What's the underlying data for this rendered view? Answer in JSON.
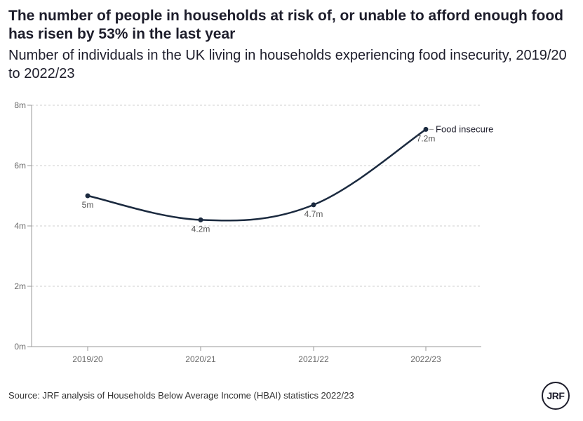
{
  "header": {
    "title": "The number of people in households at risk of, or unable to afford enough food has risen by 53% in the last year",
    "subtitle": "Number of individuals in the UK living in households experiencing food insecurity, 2019/20 to 2022/23"
  },
  "footer": {
    "source": "Source: JRF analysis of Households Below Average Income (HBAI) statistics 2022/23",
    "logo_text": "JRF"
  },
  "chart_data": {
    "type": "line",
    "title": "The number of people in households at risk of, or unable to afford enough food has risen by 53% in the last year",
    "subtitle": "Number of individuals in the UK living in households experiencing food insecurity, 2019/20 to 2022/23",
    "xlabel": "",
    "ylabel": "",
    "categories": [
      "2019/20",
      "2020/21",
      "2021/22",
      "2022/23"
    ],
    "series": [
      {
        "name": "Food insecure",
        "values": [
          5,
          4.2,
          4.7,
          7.2
        ],
        "labels": [
          "5m",
          "4.2m",
          "4.7m",
          "7.2m"
        ],
        "color": "#1b2a3f"
      }
    ],
    "ylim": [
      0,
      8
    ],
    "yticks": [
      0,
      2,
      4,
      6,
      8
    ],
    "ytick_labels": [
      "0m",
      "2m",
      "4m",
      "6m",
      "8m"
    ],
    "grid": true,
    "legend": "end-of-line label"
  }
}
